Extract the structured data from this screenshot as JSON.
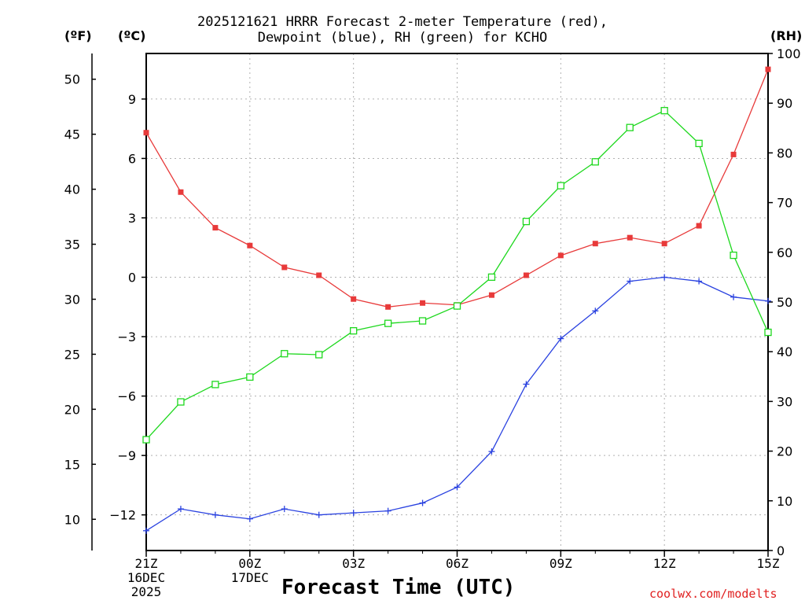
{
  "titles": {
    "line1": "2025121621 HRRR Forecast 2-meter Temperature (red),",
    "line2": "Dewpoint (blue), RH (green) for KCHO"
  },
  "units": {
    "fahrenheit": "(ºF)",
    "celsius": "(ºC)",
    "rh": "(RH)"
  },
  "footer": {
    "xlabel": "Forecast Time (UTC)",
    "credit": "coolwx.com/modelts"
  },
  "colors": {
    "temperature": "#e83a3a",
    "dewpoint": "#2a42e0",
    "rh": "#1ed81e",
    "grid": "#b0b0b0",
    "axis": "#000000"
  },
  "chart_data": {
    "type": "line",
    "title": "2025121621 HRRR Forecast 2-meter Temperature (red), Dewpoint (blue), RH (green) for KCHO",
    "xlabel": "Forecast Time (UTC)",
    "x": [
      0,
      1,
      2,
      3,
      4,
      5,
      6,
      7,
      8,
      9,
      10,
      11,
      12,
      13,
      14,
      15,
      16,
      17,
      18
    ],
    "xlim": [
      0,
      18
    ],
    "x_ticks": [
      {
        "pos": 0,
        "lines": [
          "21Z",
          "16DEC",
          "2025"
        ]
      },
      {
        "pos": 3,
        "lines": [
          "00Z",
          "17DEC"
        ]
      },
      {
        "pos": 6,
        "lines": [
          "03Z"
        ]
      },
      {
        "pos": 9,
        "lines": [
          "06Z"
        ]
      },
      {
        "pos": 12,
        "lines": [
          "09Z"
        ]
      },
      {
        "pos": 15,
        "lines": [
          "12Z"
        ]
      },
      {
        "pos": 18,
        "lines": [
          "15Z"
        ]
      }
    ],
    "ylim_celsius": [
      -13.8,
      11.3
    ],
    "yticks_celsius": [
      -12,
      -9,
      -6,
      -3,
      0,
      3,
      6,
      9
    ],
    "ylim_fahrenheit": [
      7.16,
      52.34
    ],
    "yticks_fahrenheit": [
      10,
      15,
      20,
      25,
      30,
      35,
      40,
      45,
      50
    ],
    "ylim_rh": [
      0,
      100
    ],
    "yticks_rh": [
      0,
      10,
      20,
      30,
      40,
      50,
      60,
      70,
      80,
      90,
      100
    ],
    "series": [
      {
        "name": "Temperature",
        "unit": "°C",
        "axis": "celsius",
        "marker": "filled-square",
        "color": "temperature",
        "values": [
          7.3,
          4.3,
          2.5,
          1.6,
          0.5,
          0.1,
          -1.1,
          -1.5,
          -1.3,
          -1.4,
          -0.9,
          0.1,
          1.1,
          1.7,
          2.0,
          1.7,
          2.6,
          6.2,
          10.5
        ]
      },
      {
        "name": "Dewpoint",
        "unit": "°C",
        "axis": "celsius",
        "marker": "plus",
        "color": "dewpoint",
        "values": [
          -12.8,
          -11.7,
          -12.0,
          -12.2,
          -11.7,
          -12.0,
          -11.9,
          -11.8,
          -11.4,
          -10.6,
          -8.8,
          -5.4,
          -3.1,
          -1.7,
          -0.2,
          0.0,
          -0.2,
          -1.0,
          -1.2
        ]
      },
      {
        "name": "Relative Humidity",
        "unit": "%",
        "axis": "rh",
        "marker": "open-square",
        "color": "rh",
        "values": [
          22.3,
          29.9,
          33.4,
          34.9,
          39.6,
          39.4,
          44.2,
          45.7,
          46.2,
          49.2,
          55.0,
          66.2,
          73.4,
          78.2,
          85.1,
          88.5,
          81.9,
          59.4,
          43.9
        ]
      }
    ]
  }
}
